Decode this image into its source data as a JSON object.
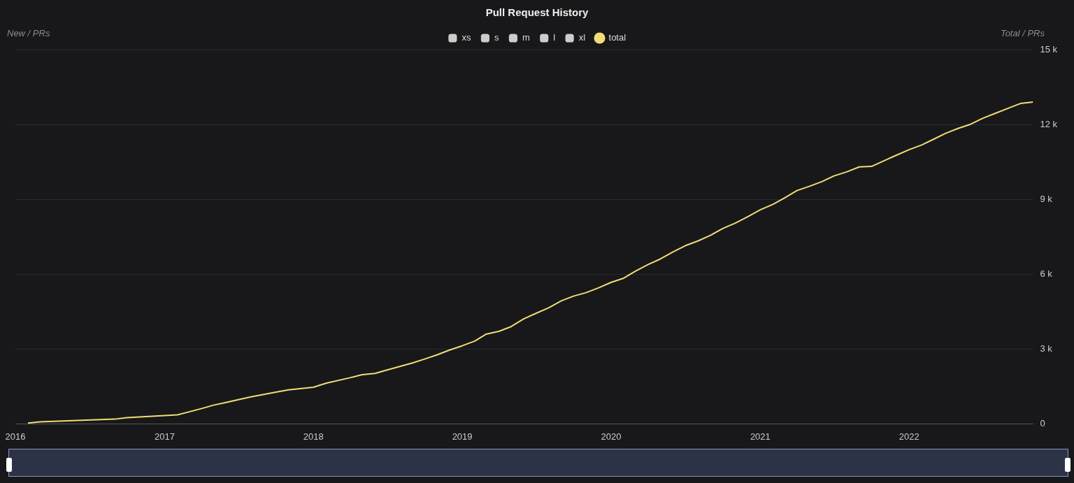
{
  "chart_data": {
    "type": "line",
    "title": "Pull Request History",
    "ylabel": "New / PRs",
    "y2label": "Total / PRs",
    "x": [
      "2016-02",
      "2016-03",
      "2016-06",
      "2016-09",
      "2016-10",
      "2016-11",
      "2017-02",
      "2017-04",
      "2017-05",
      "2017-06",
      "2017-07",
      "2017-08",
      "2017-10",
      "2017-11",
      "2018-01",
      "2018-02",
      "2018-04",
      "2018-05",
      "2018-06",
      "2018-07",
      "2018-08",
      "2018-09",
      "2018-10",
      "2018-11",
      "2018-12",
      "2019-01",
      "2019-02",
      "2019-03",
      "2019-04",
      "2019-05",
      "2019-06",
      "2019-07",
      "2019-08",
      "2019-09",
      "2019-10",
      "2019-11",
      "2019-12",
      "2020-01",
      "2020-02",
      "2020-03",
      "2020-04",
      "2020-05",
      "2020-06",
      "2020-07",
      "2020-08",
      "2020-09",
      "2020-10",
      "2020-11",
      "2020-12",
      "2021-01",
      "2021-02",
      "2021-03",
      "2021-04",
      "2021-05",
      "2021-06",
      "2021-07",
      "2021-08",
      "2021-09",
      "2021-10",
      "2021-11",
      "2021-12",
      "2022-01",
      "2022-02",
      "2022-03",
      "2022-04",
      "2022-05",
      "2022-06",
      "2022-07",
      "2022-08",
      "2022-09",
      "2022-10",
      "2022-11"
    ],
    "series": [
      {
        "name": "xs",
        "type": "bar",
        "axis": "y",
        "color": "#cccccc",
        "values": [
          null,
          null,
          null,
          null,
          null,
          null,
          null,
          null,
          null,
          null,
          null,
          null,
          null,
          null,
          null,
          null,
          null,
          null,
          null,
          null,
          null,
          null,
          null,
          null,
          null,
          null,
          null,
          null,
          null,
          null,
          null,
          null,
          null,
          null,
          null,
          null,
          null,
          null,
          null,
          null,
          null,
          null,
          null,
          null,
          null,
          null,
          null,
          null,
          null,
          null,
          null,
          null,
          null,
          null,
          null,
          null,
          null,
          null,
          null,
          null,
          null,
          null,
          null,
          null,
          null,
          null,
          null,
          null,
          null,
          null,
          null,
          null
        ]
      },
      {
        "name": "s",
        "type": "bar",
        "axis": "y",
        "color": "#cccccc",
        "values": [
          null,
          null,
          null,
          null,
          null,
          null,
          null,
          null,
          null,
          null,
          null,
          null,
          null,
          null,
          null,
          null,
          null,
          null,
          null,
          null,
          null,
          null,
          null,
          null,
          null,
          null,
          null,
          null,
          null,
          null,
          null,
          null,
          null,
          null,
          null,
          null,
          null,
          null,
          null,
          null,
          null,
          null,
          null,
          null,
          null,
          null,
          null,
          null,
          null,
          null,
          null,
          null,
          null,
          null,
          null,
          null,
          null,
          null,
          null,
          null,
          null,
          null,
          null,
          null,
          null,
          null,
          null,
          null,
          null,
          null,
          null,
          null
        ]
      },
      {
        "name": "m",
        "type": "bar",
        "axis": "y",
        "color": "#cccccc",
        "values": [
          null,
          null,
          null,
          null,
          null,
          null,
          null,
          null,
          null,
          null,
          null,
          null,
          null,
          null,
          null,
          null,
          null,
          null,
          null,
          null,
          null,
          null,
          null,
          null,
          null,
          null,
          null,
          null,
          null,
          null,
          null,
          null,
          null,
          null,
          null,
          null,
          null,
          null,
          null,
          null,
          null,
          null,
          null,
          null,
          null,
          null,
          null,
          null,
          null,
          null,
          null,
          null,
          null,
          null,
          null,
          null,
          null,
          null,
          null,
          null,
          null,
          null,
          null,
          null,
          null,
          null,
          null,
          null,
          null,
          null,
          null,
          null
        ]
      },
      {
        "name": "l",
        "type": "bar",
        "axis": "y",
        "color": "#cccccc",
        "values": [
          null,
          null,
          null,
          null,
          null,
          null,
          null,
          null,
          null,
          null,
          null,
          null,
          null,
          null,
          null,
          null,
          null,
          null,
          null,
          null,
          null,
          null,
          null,
          null,
          null,
          null,
          null,
          null,
          null,
          null,
          null,
          null,
          null,
          null,
          null,
          null,
          null,
          null,
          null,
          null,
          null,
          null,
          null,
          null,
          null,
          null,
          null,
          null,
          null,
          null,
          null,
          null,
          null,
          null,
          null,
          null,
          null,
          null,
          null,
          null,
          null,
          null,
          null,
          null,
          null,
          null,
          null,
          null,
          null,
          null,
          null,
          null
        ]
      },
      {
        "name": "xl",
        "type": "bar",
        "axis": "y",
        "color": "#cccccc",
        "values": [
          null,
          null,
          null,
          null,
          null,
          null,
          null,
          null,
          null,
          null,
          null,
          null,
          null,
          null,
          null,
          null,
          null,
          null,
          null,
          null,
          null,
          null,
          null,
          null,
          null,
          null,
          null,
          null,
          null,
          null,
          null,
          null,
          null,
          null,
          null,
          null,
          null,
          null,
          null,
          null,
          null,
          null,
          null,
          null,
          null,
          null,
          null,
          null,
          null,
          null,
          null,
          null,
          null,
          null,
          null,
          null,
          null,
          null,
          null,
          null,
          null,
          null,
          null,
          null,
          null,
          null,
          null,
          null,
          null,
          null,
          null,
          null
        ]
      },
      {
        "name": "total",
        "axis": "y2",
        "color": "#f1dc77",
        "values": [
          30,
          80,
          140,
          190,
          250,
          280,
          360,
          610,
          750,
          860,
          970,
          1080,
          1270,
          1360,
          1470,
          1630,
          1850,
          1970,
          2020,
          2160,
          2300,
          2440,
          2600,
          2770,
          2960,
          3130,
          3320,
          3600,
          3710,
          3900,
          4210,
          4430,
          4650,
          4930,
          5120,
          5260,
          5450,
          5670,
          5840,
          6120,
          6390,
          6610,
          6890,
          7140,
          7330,
          7560,
          7830,
          8050,
          8300,
          8580,
          8800,
          9050,
          9350,
          9520,
          9710,
          9940,
          10100,
          10300,
          10320,
          10550,
          10770,
          10990,
          11180,
          11400,
          11650,
          11840,
          12010,
          12250,
          12450,
          12650,
          12840,
          12900
        ]
      }
    ],
    "xlim": [
      "2016-01-01",
      "2022-11-01"
    ],
    "xticks": [
      "2016",
      "2017",
      "2018",
      "2019",
      "2020",
      "2021",
      "2022"
    ],
    "y2lim": [
      0,
      15000
    ],
    "y2ticks": [
      {
        "value": 0,
        "label": "0"
      },
      {
        "value": 3000,
        "label": "3 k"
      },
      {
        "value": 6000,
        "label": "6 k"
      },
      {
        "value": 9000,
        "label": "9 k"
      },
      {
        "value": 12000,
        "label": "12 k"
      },
      {
        "value": 15000,
        "label": "15 k"
      }
    ],
    "grid": "y",
    "legend": "top",
    "line_style": "solid"
  }
}
